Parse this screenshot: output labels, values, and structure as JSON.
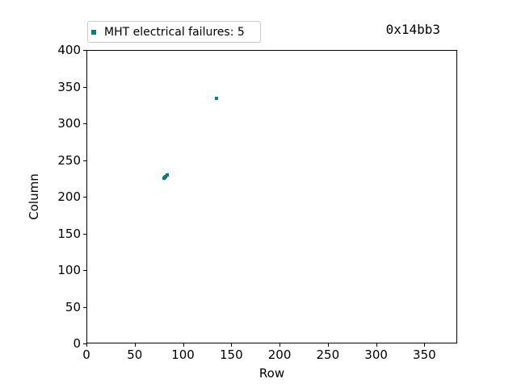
{
  "figure": {
    "chip_id": "0x14bb3"
  },
  "legend": {
    "label": "MHT electrical failures: 5",
    "marker_color": "#008080"
  },
  "axes": {
    "xlabel": "Row",
    "ylabel": "Column"
  },
  "colors": {
    "marker": "#008080",
    "axis": "#000000",
    "text": "#000000",
    "legend_border": "#cccccc",
    "background": "#ffffff"
  },
  "chart_data": {
    "type": "scatter",
    "title": "0x14bb3",
    "xlabel": "Row",
    "ylabel": "Column",
    "xlim": [
      0,
      384
    ],
    "ylim": [
      0,
      400
    ],
    "xticks": [
      0,
      50,
      100,
      150,
      200,
      250,
      300,
      350
    ],
    "yticks": [
      0,
      50,
      100,
      150,
      200,
      250,
      300,
      350,
      400
    ],
    "grid": false,
    "legend_position": "top-left, above plot area",
    "series": [
      {
        "name": "MHT electrical failures: 5",
        "marker": "square",
        "color": "#008080",
        "points": [
          [
            80,
            225
          ],
          [
            81,
            226
          ],
          [
            82,
            228
          ],
          [
            84,
            230
          ],
          [
            135,
            334
          ]
        ]
      }
    ]
  }
}
